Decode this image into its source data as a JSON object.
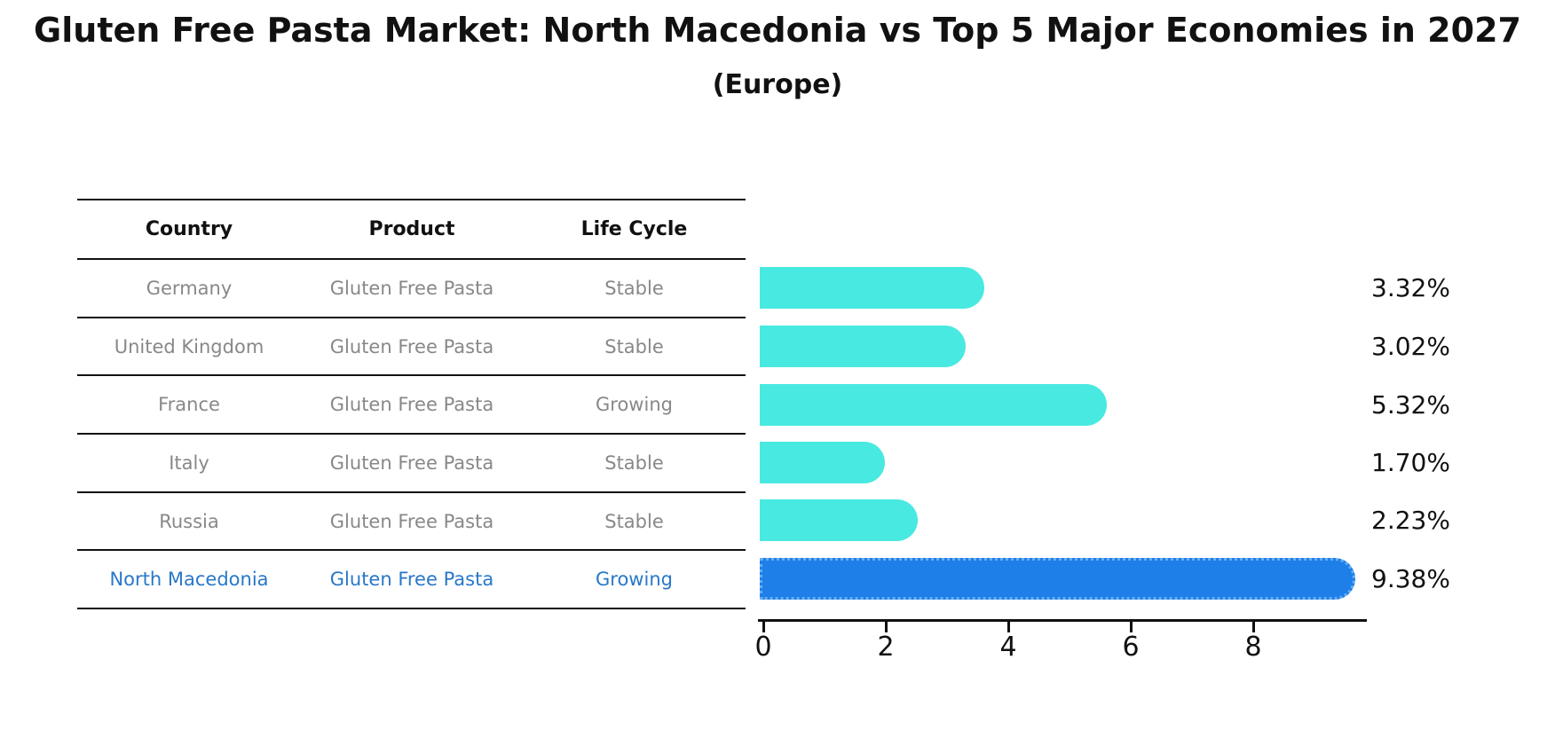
{
  "header": {
    "title": "Gluten Free Pasta Market: North Macedonia vs Top 5 Major Economies in 2027",
    "subtitle": "(Europe)"
  },
  "table": {
    "columns": [
      "Country",
      "Product",
      "Life Cycle"
    ],
    "rows": [
      {
        "country": "Germany",
        "product": "Gluten Free Pasta",
        "life_cycle": "Stable"
      },
      {
        "country": "United Kingdom",
        "product": "Gluten Free Pasta",
        "life_cycle": "Stable"
      },
      {
        "country": "France",
        "product": "Gluten Free Pasta",
        "life_cycle": "Growing"
      },
      {
        "country": "Italy",
        "product": "Gluten Free Pasta",
        "life_cycle": "Stable"
      },
      {
        "country": "Russia",
        "product": "Gluten Free Pasta",
        "life_cycle": "Stable"
      },
      {
        "country": "North Macedonia",
        "product": "Gluten Free Pasta",
        "life_cycle": "Growing"
      }
    ],
    "highlighted_row": "North Macedonia"
  },
  "chart_data": {
    "type": "bar",
    "orientation": "horizontal",
    "title": "Gluten Free Pasta Market: North Macedonia vs Top 5 Major Economies in 2027",
    "subtitle": "(Europe)",
    "categories": [
      "Germany",
      "United Kingdom",
      "France",
      "Italy",
      "Russia",
      "North Macedonia"
    ],
    "values": [
      3.32,
      3.02,
      5.32,
      1.7,
      2.23,
      9.38
    ],
    "value_labels": [
      "3.32%",
      "3.02%",
      "5.32%",
      "1.70%",
      "2.23%",
      "9.38%"
    ],
    "unit": "%",
    "xticks": [
      "0",
      "2",
      "4",
      "6",
      "8"
    ],
    "xlim": [
      0,
      9.9
    ],
    "grid": false,
    "legend": false,
    "base_color": "#48E9E0",
    "highlight_color": "#1E7FE8",
    "highlight_text_color": "#2878C8",
    "bar_colors": [
      "#48E9E0",
      "#48E9E0",
      "#48E9E0",
      "#48E9E0",
      "#48E9E0",
      "#1E7FE8"
    ]
  }
}
